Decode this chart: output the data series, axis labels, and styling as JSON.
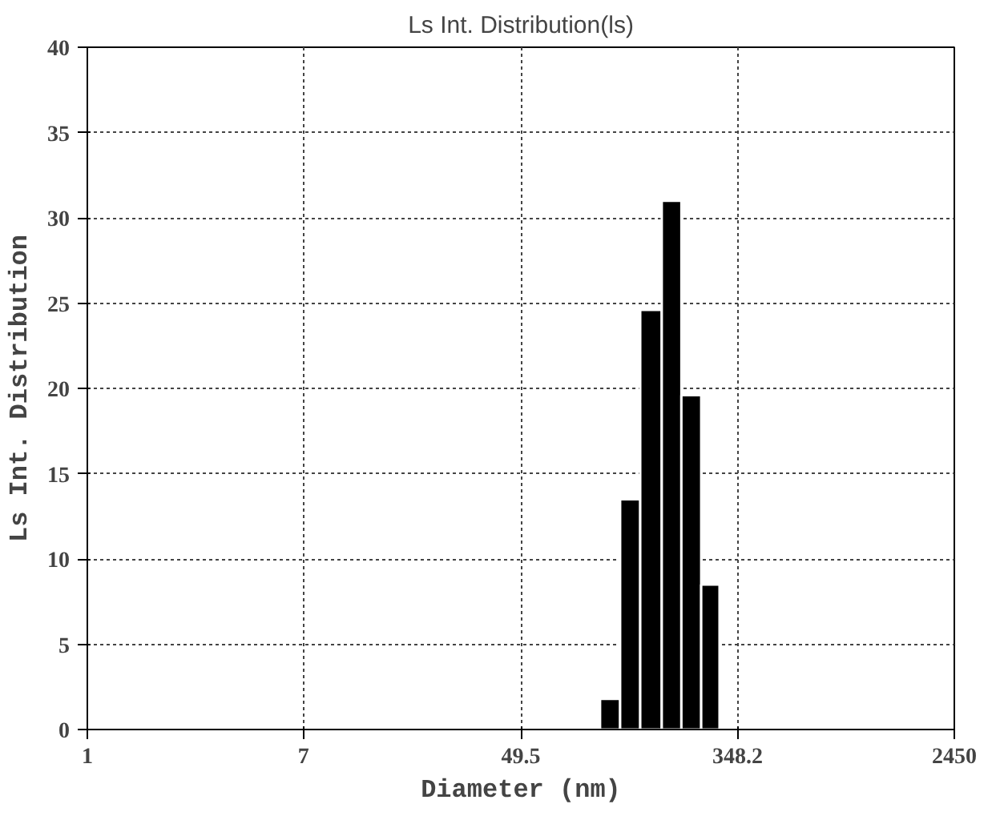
{
  "chart_data": {
    "type": "histogram",
    "title": "Ls Int. Distribution(ls)",
    "xlabel": "Diameter (nm)",
    "ylabel": "Ls Int. Distribution",
    "bins": [
      101,
      121,
      145,
      176,
      210,
      251,
      296
    ],
    "values": [
      1.8,
      13.5,
      24.6,
      31.0,
      19.6,
      8.5
    ],
    "color": "#000000",
    "log": "x",
    "xlim": [
      1,
      2450
    ],
    "xticks": [
      1,
      7,
      49.5,
      348.2,
      2450
    ],
    "ylim": [
      0,
      40
    ],
    "yticks": [
      0,
      5,
      10,
      15,
      20,
      25,
      30,
      35,
      40
    ],
    "grid": true,
    "line_style": "dotted"
  }
}
